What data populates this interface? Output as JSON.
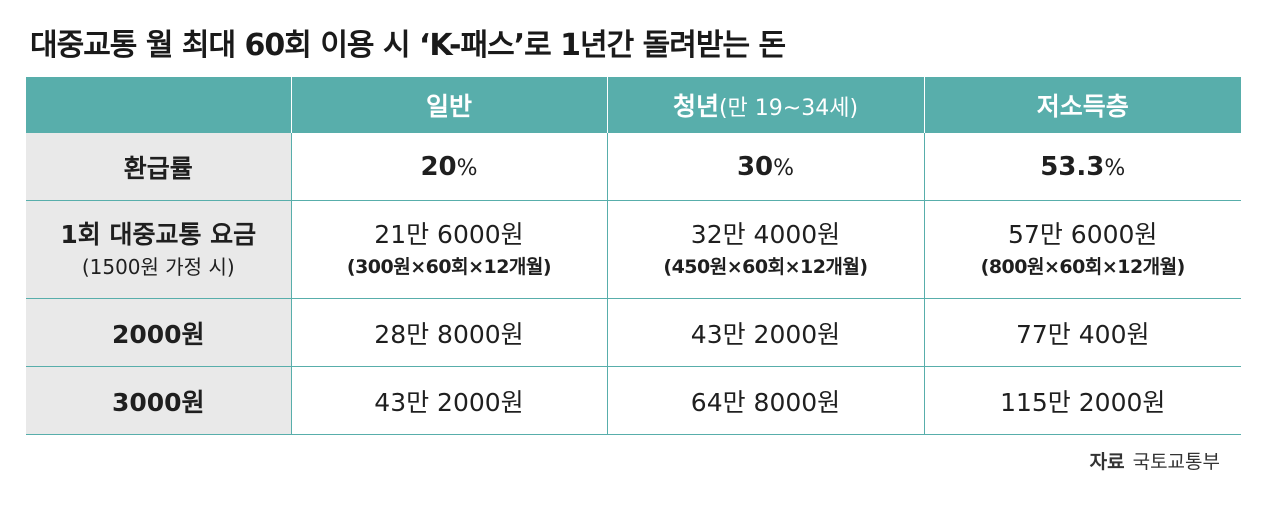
{
  "title": "대중교통 월 최대 60회 이용 시 ‘K-패스’로 1년간 돌려받는 돈",
  "table": {
    "headers": {
      "general": "일반",
      "youth": "청년",
      "youth_sub": "(만 19~34세)",
      "lowincome": "저소득층"
    },
    "rows": {
      "rate": {
        "label": "환급률",
        "general": "20",
        "youth": "30",
        "lowincome": "53.3",
        "unit": "%"
      },
      "fare1500": {
        "label": "1회 대중교통 요금",
        "label_sub": "(1500원 가정 시)",
        "general": "21만 6000원",
        "general_sub": "(300원×60회×12개월)",
        "youth": "32만 4000원",
        "youth_sub": "(450원×60회×12개월)",
        "lowincome": "57만 6000원",
        "lowincome_sub": "(800원×60회×12개월)"
      },
      "fare2000": {
        "label": "2000원",
        "general": "28만 8000원",
        "youth": "43만 2000원",
        "lowincome": "77만 400원"
      },
      "fare3000": {
        "label": "3000원",
        "general": "43만 2000원",
        "youth": "64만 8000원",
        "lowincome": "115만 2000원"
      }
    }
  },
  "source": {
    "label": "자료",
    "value": "국토교통부"
  },
  "colors": {
    "header_bg": "#58aeab",
    "label_bg": "#e9e9e9",
    "grid": "#58aeab"
  }
}
